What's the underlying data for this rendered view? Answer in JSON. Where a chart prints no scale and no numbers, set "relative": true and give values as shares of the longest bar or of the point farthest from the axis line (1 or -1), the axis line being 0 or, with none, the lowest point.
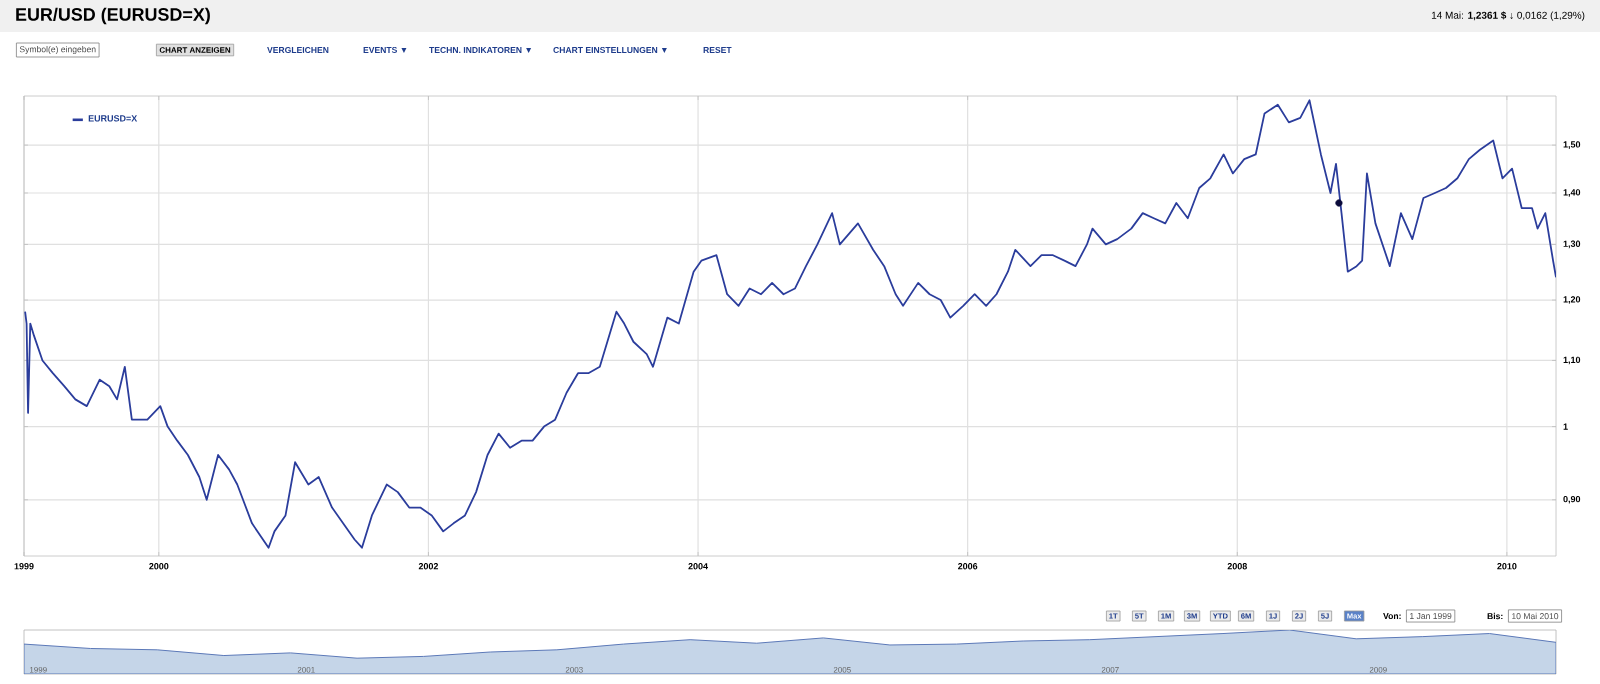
{
  "chart_data": [
    {
      "type": "line",
      "title": "EUR/USD (EURUSD=X)",
      "subtitle": "14 Mai: **1,2361 $** ↓ 0,0162 (1,29%)",
      "annotations": [
        "Symbol(e) eingeben",
        "CHART ANZEIGEN",
        "VERGLEICHEN",
        "EVENTS ▼",
        "TECHN. INDIKATOREN ▼",
        "CHART EINSTELLUNGEN ▼",
        "RESET",
        "1T",
        "5T",
        "1M",
        "3M",
        "YTD",
        "6M",
        "1J",
        "2J",
        "5J",
        "Max",
        "Von:",
        "1 Jan 1999",
        "Bis:",
        "10 Mai 2010"
      ],
      "log": true,
      "grid": true,
      "legend": "top left",
      "xlim": [
        "1999-01-01",
        "2010-05-14"
      ],
      "xticks": [
        {
          "value": "1999-01-01",
          "label": "1999"
        },
        {
          "value": "2000-01-01",
          "label": "2000"
        },
        {
          "value": "2002-01-01",
          "label": "2002"
        },
        {
          "value": "2004-01-01",
          "label": "2004"
        },
        {
          "value": "2006-01-01",
          "label": "2006"
        },
        {
          "value": "2008-01-01",
          "label": "2008"
        },
        {
          "value": "2010-01-01",
          "label": "2010"
        }
      ],
      "ylim": [
        0.83,
        1.61
      ],
      "yticks": [
        {
          "value": 0.9,
          "label": "0,90"
        },
        1,
        {
          "value": 1.1,
          "label": "1,10"
        },
        {
          "value": 1.2,
          "label": "1,20"
        },
        {
          "value": 1.3,
          "label": "1,30"
        },
        {
          "value": 1.4,
          "label": "1,40"
        },
        {
          "value": 1.5,
          "label": "1,50"
        }
      ],
      "series": [
        {
          "name": "EURUSD=X",
          "color": "#2b3d9c",
          "type": "line",
          "x": [
            "1999-01-04",
            "1999-01-08",
            "1999-01-12",
            "1999-01-18",
            "1999-01-28",
            "1999-02-20",
            "1999-03-20",
            "1999-04-20",
            "1999-05-20",
            "1999-06-20",
            "1999-07-25",
            "1999-08-20",
            "1999-09-10",
            "1999-10-01",
            "1999-10-20",
            "1999-12-01",
            "2000-01-05",
            "2000-01-25",
            "2000-02-20",
            "2000-03-20",
            "2000-04-20",
            "2000-05-10",
            "2000-06-10",
            "2000-07-10",
            "2000-08-01",
            "2000-09-10",
            "2000-10-25",
            "2000-11-10",
            "2000-12-10",
            "2001-01-05",
            "2001-02-10",
            "2001-03-10",
            "2001-04-15",
            "2001-05-15",
            "2001-06-15",
            "2001-07-05",
            "2001-08-01",
            "2001-09-10",
            "2001-10-10",
            "2001-11-10",
            "2001-12-10",
            "2002-01-10",
            "2002-02-10",
            "2002-03-10",
            "2002-04-10",
            "2002-05-10",
            "2002-06-10",
            "2002-07-10",
            "2002-08-10",
            "2002-09-10",
            "2002-10-10",
            "2002-11-10",
            "2002-12-10",
            "2003-01-10",
            "2003-02-10",
            "2003-03-10",
            "2003-04-10",
            "2003-05-25",
            "2003-06-15",
            "2003-07-10",
            "2003-08-15",
            "2003-09-01",
            "2003-10-10",
            "2003-11-10",
            "2003-12-20",
            "2004-01-10",
            "2004-02-20",
            "2004-03-20",
            "2004-04-20",
            "2004-05-20",
            "2004-06-20",
            "2004-07-20",
            "2004-08-20",
            "2004-09-20",
            "2004-10-20",
            "2004-11-20",
            "2004-12-30",
            "2005-01-20",
            "2005-03-10",
            "2005-04-20",
            "2005-05-20",
            "2005-06-20",
            "2005-07-10",
            "2005-08-20",
            "2005-09-20",
            "2005-10-20",
            "2005-11-15",
            "2005-12-20",
            "2006-01-20",
            "2006-02-20",
            "2006-03-20",
            "2006-04-20",
            "2006-05-10",
            "2006-06-20",
            "2006-07-20",
            "2006-08-20",
            "2006-09-20",
            "2006-10-20",
            "2006-11-20",
            "2006-12-05",
            "2007-01-10",
            "2007-02-10",
            "2007-03-20",
            "2007-04-20",
            "2007-05-20",
            "2007-06-20",
            "2007-07-20",
            "2007-08-20",
            "2007-09-20",
            "2007-10-20",
            "2007-11-25",
            "2007-12-20",
            "2008-01-20",
            "2008-02-20",
            "2008-03-15",
            "2008-04-20",
            "2008-05-20",
            "2008-06-20",
            "2008-07-15",
            "2008-08-15",
            "2008-09-10",
            "2008-09-25",
            "2008-10-10",
            "2008-10-27",
            "2008-11-20",
            "2008-12-05",
            "2008-12-18",
            "2009-01-10",
            "2009-02-18",
            "2009-03-20",
            "2009-04-20",
            "2009-05-20",
            "2009-06-20",
            "2009-07-20",
            "2009-08-20",
            "2009-09-20",
            "2009-10-20",
            "2009-11-25",
            "2009-12-20",
            "2010-01-15",
            "2010-02-10",
            "2010-03-10",
            "2010-03-25",
            "2010-04-15",
            "2010-05-06",
            "2010-05-14"
          ],
          "values": [
            1.18,
            1.16,
            1.02,
            1.16,
            1.14,
            1.1,
            1.08,
            1.06,
            1.04,
            1.03,
            1.07,
            1.06,
            1.04,
            1.09,
            1.01,
            1.01,
            1.03,
            1.0,
            0.98,
            0.96,
            0.93,
            0.9,
            0.96,
            0.94,
            0.92,
            0.87,
            0.84,
            0.86,
            0.88,
            0.95,
            0.92,
            0.93,
            0.89,
            0.87,
            0.85,
            0.84,
            0.88,
            0.92,
            0.91,
            0.89,
            0.89,
            0.88,
            0.86,
            0.87,
            0.88,
            0.91,
            0.96,
            0.99,
            0.97,
            0.98,
            0.98,
            1.0,
            1.01,
            1.05,
            1.08,
            1.08,
            1.09,
            1.18,
            1.16,
            1.13,
            1.11,
            1.09,
            1.17,
            1.16,
            1.25,
            1.27,
            1.28,
            1.21,
            1.19,
            1.22,
            1.21,
            1.23,
            1.21,
            1.22,
            1.26,
            1.3,
            1.36,
            1.3,
            1.34,
            1.29,
            1.26,
            1.21,
            1.19,
            1.23,
            1.21,
            1.2,
            1.17,
            1.19,
            1.21,
            1.19,
            1.21,
            1.25,
            1.29,
            1.26,
            1.28,
            1.28,
            1.27,
            1.26,
            1.3,
            1.33,
            1.3,
            1.31,
            1.33,
            1.36,
            1.35,
            1.34,
            1.38,
            1.35,
            1.41,
            1.43,
            1.48,
            1.44,
            1.47,
            1.48,
            1.57,
            1.59,
            1.55,
            1.56,
            1.6,
            1.48,
            1.4,
            1.46,
            1.36,
            1.25,
            1.26,
            1.27,
            1.44,
            1.34,
            1.26,
            1.36,
            1.31,
            1.39,
            1.4,
            1.41,
            1.43,
            1.47,
            1.49,
            1.51,
            1.43,
            1.45,
            1.37,
            1.37,
            1.33,
            1.36,
            1.27,
            1.24
          ]
        },
        {
          "type": "scatter",
          "color": "#0a0a3a",
          "marker": "circle",
          "x": [
            "2008-10-03"
          ],
          "values": [
            1.38
          ]
        }
      ]
    },
    {
      "type": "area",
      "relative": true,
      "color": "#c5d5e8",
      "annotations": [
        "1999",
        "2001",
        "2003",
        "2005",
        "2007",
        "2009"
      ],
      "categories": [
        null,
        null,
        null,
        null,
        null,
        null,
        null,
        null,
        null,
        null,
        null,
        null,
        null,
        null,
        null,
        null,
        null,
        null,
        null,
        null,
        null,
        null,
        null,
        null
      ],
      "values": [
        0.68,
        0.58,
        0.55,
        0.42,
        0.48,
        0.36,
        0.4,
        0.5,
        0.55,
        0.68,
        0.78,
        0.7,
        0.82,
        0.66,
        0.68,
        0.75,
        0.78,
        0.85,
        0.92,
        1.0,
        0.8,
        0.85,
        0.92,
        0.72
      ]
    }
  ]
}
